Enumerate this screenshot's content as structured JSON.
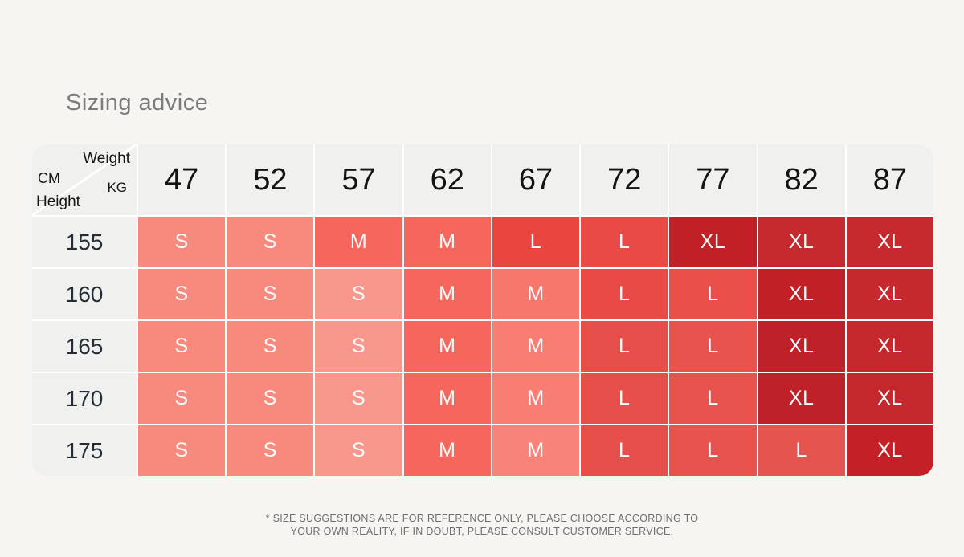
{
  "page": {
    "background": "#F6F5F2",
    "gridline_color": "#FFFFFF",
    "header_bg": "#F0F0EE"
  },
  "title": "Sizing advice",
  "table": {
    "corner": {
      "top_right": "Weight",
      "left": "CM",
      "right": "KG",
      "bottom": "Height"
    },
    "weight_headers": [
      "47",
      "52",
      "57",
      "62",
      "67",
      "72",
      "77",
      "82",
      "87"
    ],
    "height_rows": [
      "155",
      "160",
      "165",
      "170",
      "175"
    ],
    "cell_values": [
      [
        "S",
        "S",
        "M",
        "M",
        "L",
        "L",
        "XL",
        "XL",
        "XL"
      ],
      [
        "S",
        "S",
        "S",
        "M",
        "M",
        "L",
        "L",
        "XL",
        "XL"
      ],
      [
        "S",
        "S",
        "S",
        "M",
        "M",
        "L",
        "L",
        "XL",
        "XL"
      ],
      [
        "S",
        "S",
        "S",
        "M",
        "M",
        "L",
        "L",
        "XL",
        "XL"
      ],
      [
        "S",
        "S",
        "S",
        "M",
        "M",
        "L",
        "L",
        "L",
        "XL"
      ]
    ],
    "cell_colors": [
      [
        "#F7897D",
        "#F7897D",
        "#F5675D",
        "#F5675D",
        "#E94640",
        "#E94A45",
        "#C02026",
        "#C62A2E",
        "#C62A2E"
      ],
      [
        "#F7897D",
        "#F7897D",
        "#F8978B",
        "#F5675D",
        "#F8776C",
        "#E94A45",
        "#EA4F49",
        "#C02026",
        "#C5292D"
      ],
      [
        "#F7897D",
        "#F7897D",
        "#F8978B",
        "#F5675D",
        "#F87E73",
        "#E64F49",
        "#E8534D",
        "#BE2127",
        "#C4282C"
      ],
      [
        "#F7897D",
        "#F7897D",
        "#F8978B",
        "#F5675D",
        "#F87E73",
        "#E64F49",
        "#E8534D",
        "#BE2127",
        "#C4282C"
      ],
      [
        "#F7897D",
        "#F7897D",
        "#F8978B",
        "#F5675D",
        "#F8837A",
        "#E64F49",
        "#E8534D",
        "#E6544E",
        "#C32127"
      ]
    ]
  },
  "footnote": {
    "line1": "* SIZE SUGGESTIONS ARE FOR REFERENCE ONLY, PLEASE CHOOSE ACCORDING TO",
    "line2": "YOUR OWN REALITY, IF IN DOUBT, PLEASE CONSULT CUSTOMER SERVICE."
  },
  "chart_data": {
    "type": "table",
    "title": "Sizing advice",
    "xlabel": "Weight (KG)",
    "ylabel": "Height (CM)",
    "columns": [
      47,
      52,
      57,
      62,
      67,
      72,
      77,
      82,
      87
    ],
    "rows": [
      155,
      160,
      165,
      170,
      175
    ],
    "values": [
      [
        "S",
        "S",
        "M",
        "M",
        "L",
        "L",
        "XL",
        "XL",
        "XL"
      ],
      [
        "S",
        "S",
        "S",
        "M",
        "M",
        "L",
        "L",
        "XL",
        "XL"
      ],
      [
        "S",
        "S",
        "S",
        "M",
        "M",
        "L",
        "L",
        "XL",
        "XL"
      ],
      [
        "S",
        "S",
        "S",
        "M",
        "M",
        "L",
        "L",
        "XL",
        "XL"
      ],
      [
        "S",
        "S",
        "S",
        "M",
        "M",
        "L",
        "L",
        "L",
        "XL"
      ]
    ],
    "legend_note": "Cell color darkens from size S (light salmon) to XL (dark red)"
  }
}
